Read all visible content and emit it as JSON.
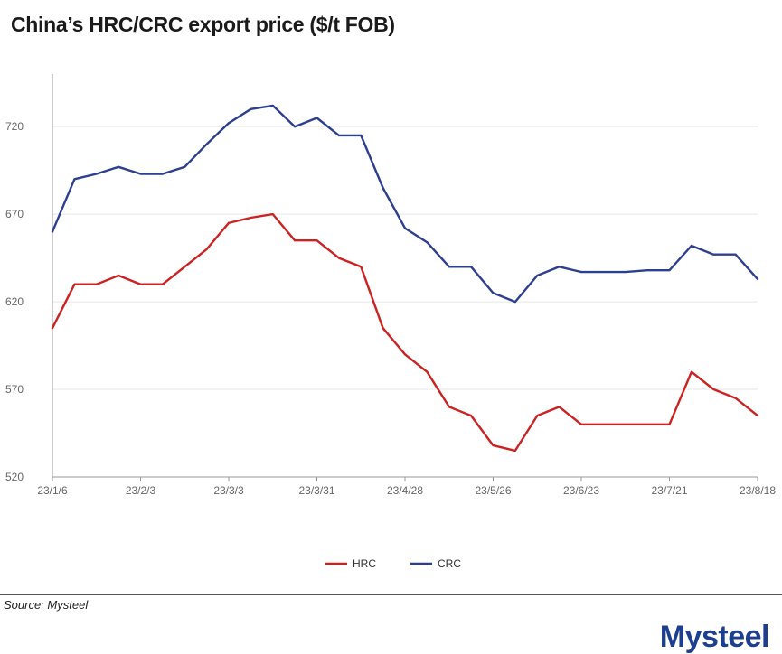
{
  "page": {
    "title": "China’s HRC/CRC export price ($/t FOB)"
  },
  "footer": {
    "source": "Source: Mysteel",
    "logo_text": "Mysteel"
  },
  "colors": {
    "hrc": "#cc2222",
    "crc": "#2e3f8f",
    "grid": "#e6e6e6",
    "axis": "#999999",
    "logo": "#1e3f8f"
  },
  "chart_data": {
    "type": "line",
    "title": "China’s HRC/CRC export price ($/t FOB)",
    "xlabel": "",
    "ylabel": "",
    "ylim": [
      520,
      750
    ],
    "yticks": [
      520,
      570,
      620,
      670,
      720
    ],
    "xtick_labels": [
      "23/1/6",
      "23/2/3",
      "23/3/3",
      "23/3/31",
      "23/4/28",
      "23/5/26",
      "23/6/23",
      "23/7/21",
      "23/8/18"
    ],
    "x": [
      "23/1/6",
      "23/1/13",
      "23/1/20",
      "23/1/27",
      "23/2/3",
      "23/2/10",
      "23/2/17",
      "23/2/24",
      "23/3/3",
      "23/3/10",
      "23/3/17",
      "23/3/24",
      "23/3/31",
      "23/4/7",
      "23/4/14",
      "23/4/21",
      "23/4/28",
      "23/5/5",
      "23/5/12",
      "23/5/19",
      "23/5/26",
      "23/6/2",
      "23/6/9",
      "23/6/16",
      "23/6/23",
      "23/6/30",
      "23/7/7",
      "23/7/14",
      "23/7/21",
      "23/7/28",
      "23/8/4",
      "23/8/11",
      "23/8/18"
    ],
    "series": [
      {
        "name": "HRC",
        "values": [
          605,
          630,
          630,
          635,
          630,
          630,
          640,
          650,
          665,
          668,
          670,
          655,
          655,
          645,
          640,
          605,
          590,
          580,
          560,
          555,
          538,
          535,
          555,
          560,
          550,
          550,
          550,
          550,
          550,
          580,
          570,
          565,
          555
        ]
      },
      {
        "name": "CRC",
        "values": [
          660,
          690,
          693,
          697,
          693,
          693,
          697,
          710,
          722,
          730,
          732,
          720,
          725,
          715,
          715,
          685,
          662,
          654,
          640,
          640,
          625,
          620,
          635,
          640,
          637,
          637,
          637,
          638,
          638,
          652,
          647,
          647,
          633
        ]
      }
    ],
    "grid": true,
    "legend": "bottom-center"
  }
}
